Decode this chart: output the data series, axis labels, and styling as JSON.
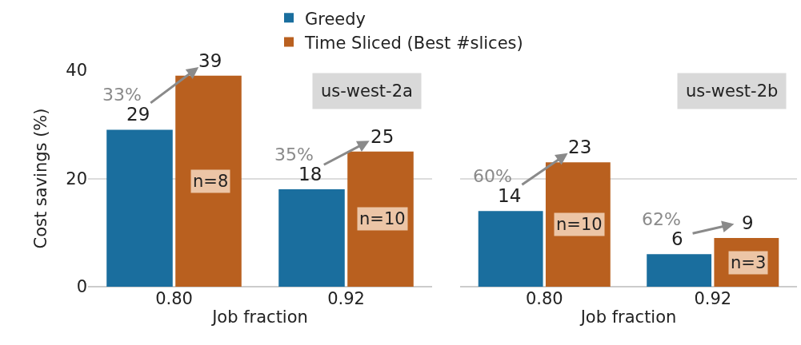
{
  "chart_data": [
    {
      "type": "bar",
      "xlabel": "Job fraction",
      "ylabel": "Cost savings (%)",
      "categories": [
        "0.80",
        "0.92"
      ],
      "ylim": [
        0,
        40
      ],
      "yticks": [
        0,
        20,
        40
      ],
      "grid": "y",
      "legend": "top",
      "data_labels": true,
      "series": [
        {
          "name": "Greedy",
          "color": "#1a6e9e",
          "values": [
            29,
            18
          ]
        },
        {
          "name": "Time Sliced (Best #slices)",
          "color": "#b9601f",
          "values": [
            39,
            25
          ]
        }
      ],
      "annotations": [
        "us-west-2a",
        "33%",
        "35%",
        "n=8",
        "n=10"
      ]
    },
    {
      "type": "bar",
      "xlabel": "Job fraction",
      "categories": [
        "0.80",
        "0.92"
      ],
      "ylim": [
        0,
        40
      ],
      "yticks": [
        0,
        20,
        40
      ],
      "grid": "y",
      "tick_labels": "x",
      "data_labels": true,
      "series": [
        {
          "color": "#1a6e9e",
          "values": [
            14,
            6
          ]
        },
        {
          "color": "#b9601f",
          "values": [
            23,
            9
          ]
        }
      ],
      "annotations": [
        "us-west-2b",
        "60%",
        "62%",
        "n=10",
        "n=3"
      ]
    }
  ]
}
